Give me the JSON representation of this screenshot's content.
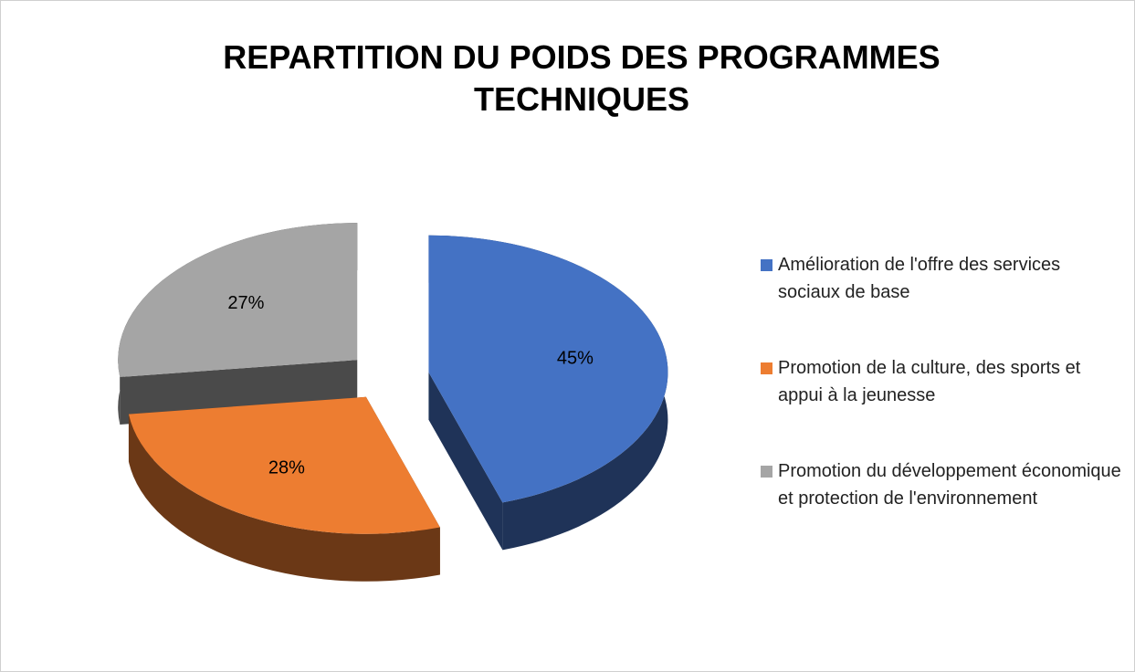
{
  "chart_data": {
    "type": "pie",
    "title": "REPARTITION DU POIDS DES PROGRAMMES TECHNIQUES",
    "categories": [
      "Amélioration de l'offre des services sociaux de base",
      "Promotion de la culture, des sports et appui à la jeunesse",
      "Promotion du développement économique et protection de l'environnement"
    ],
    "values": [
      45,
      28,
      27
    ],
    "value_labels": [
      "45%",
      "28%",
      "27%"
    ],
    "colors": [
      "#4472c4",
      "#ed7d31",
      "#a5a5a5"
    ],
    "legend": "right"
  }
}
